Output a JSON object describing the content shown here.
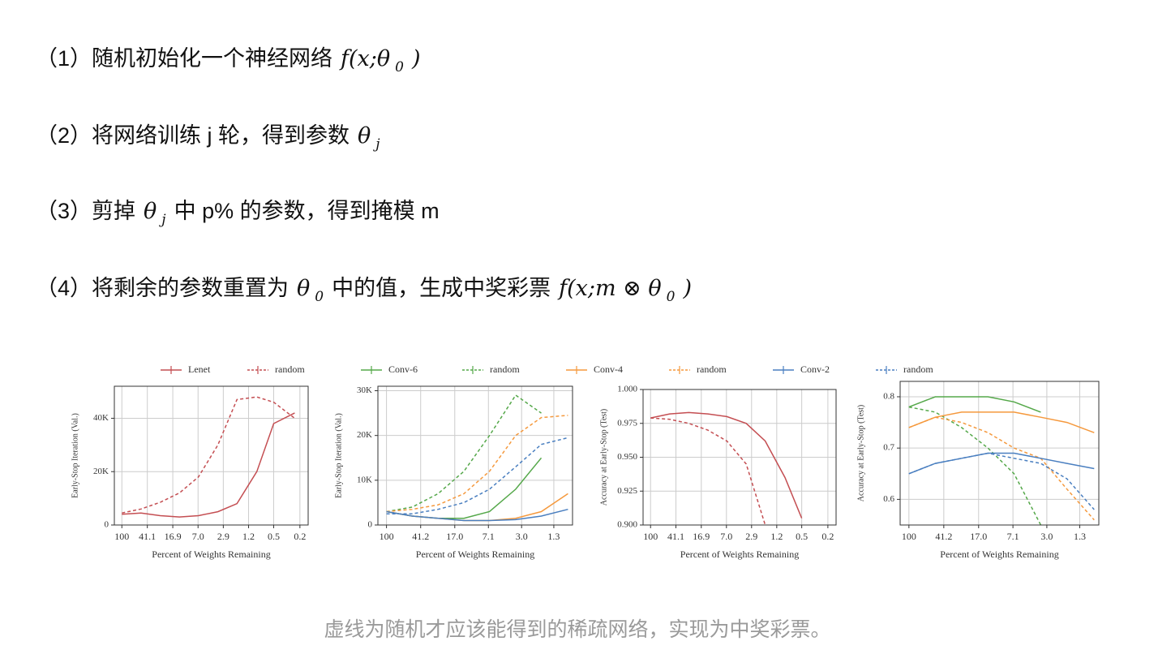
{
  "steps": [
    {
      "segments": [
        {
          "text": "（1）随机初始化一个神经网络"
        },
        {
          "math": "f(x;θ"
        },
        {
          "sub": "0"
        },
        {
          "math": ")"
        }
      ]
    },
    {
      "segments": [
        {
          "text": "（2）将网络训练 j 轮，得到参数"
        },
        {
          "math": "θ"
        },
        {
          "sub": "j"
        }
      ]
    },
    {
      "segments": [
        {
          "text": "（3）剪掉"
        },
        {
          "math": "θ"
        },
        {
          "sub": "j"
        },
        {
          "text": "中 p% 的参数，得到掩模 m"
        }
      ]
    },
    {
      "segments": [
        {
          "text": "（4）将剩余的参数重置为"
        },
        {
          "math": "θ"
        },
        {
          "sub": "0"
        },
        {
          "text": "中的值，生成中奖彩票"
        },
        {
          "math": "f(x;m ⊗ θ"
        },
        {
          "sub": "0"
        },
        {
          "math": ")"
        }
      ]
    }
  ],
  "figure": {
    "legend": [
      {
        "name": "Lenet",
        "color": "#c44e52",
        "dashed": false
      },
      {
        "name": "random",
        "color": "#c44e52",
        "dashed": true
      },
      {
        "name": "Conv-6",
        "color": "#55a84a",
        "dashed": false
      },
      {
        "name": "random",
        "color": "#55a84a",
        "dashed": true
      },
      {
        "name": "Conv-4",
        "color": "#f5993d",
        "dashed": false
      },
      {
        "name": "random",
        "color": "#f5993d",
        "dashed": true
      },
      {
        "name": "Conv-2",
        "color": "#4a7fc0",
        "dashed": false
      },
      {
        "name": "random",
        "color": "#4a7fc0",
        "dashed": true
      }
    ]
  },
  "chart_data": [
    {
      "type": "line",
      "xlabel": "Percent of Weights Remaining",
      "ylabel": "Early-Stop Iteration (Val.)",
      "xscale": "log",
      "grid": true,
      "x": [
        100,
        51.2,
        26.2,
        13.4,
        6.9,
        3.5,
        1.8,
        0.9,
        0.5,
        0.24
      ],
      "xlim": [
        130,
        0.15
      ],
      "xticks": [
        100,
        41.1,
        16.9,
        {
          "value": 7,
          "label": "7.0"
        },
        2.9,
        1.2,
        0.5,
        0.2
      ],
      "ylim": [
        0,
        52000
      ],
      "yticks": [
        0,
        {
          "value": 20000,
          "label": "20K"
        },
        {
          "value": 40000,
          "label": "40K"
        }
      ],
      "series": [
        {
          "color": "#c44e52",
          "dashed": false,
          "values": [
            4000,
            4500,
            3500,
            3000,
            3500,
            5000,
            8000,
            20000,
            38000,
            42000
          ]
        },
        {
          "color": "#c44e52",
          "dashed": true,
          "values": [
            4500,
            6000,
            8500,
            12000,
            18000,
            30000,
            47000,
            48000,
            46000,
            40000
          ]
        }
      ]
    },
    {
      "type": "line",
      "xlabel": "Percent of Weights Remaining",
      "ylabel": "Early-Stop Iteration (Val.)",
      "xscale": "log",
      "grid": true,
      "x": [
        100,
        51.2,
        26.2,
        13.4,
        6.9,
        3.5,
        1.8,
        0.9
      ],
      "xlim": [
        125,
        0.8
      ],
      "xticks": [
        100,
        41.2,
        {
          "value": 17,
          "label": "17.0"
        },
        7.1,
        {
          "value": 3,
          "label": "3.0"
        },
        1.3
      ],
      "ylim": [
        0,
        31000
      ],
      "yticks": [
        0,
        {
          "value": 10000,
          "label": "10K"
        },
        {
          "value": 20000,
          "label": "20K"
        },
        {
          "value": 30000,
          "label": "30K"
        }
      ],
      "series": [
        {
          "color": "#55a84a",
          "dashed": false,
          "values": [
            3000,
            2000,
            1500,
            1500,
            3000,
            8000,
            15000,
            null
          ]
        },
        {
          "color": "#55a84a",
          "dashed": true,
          "values": [
            3000,
            4000,
            7000,
            12000,
            20000,
            29000,
            25000,
            null
          ]
        },
        {
          "color": "#f5993d",
          "dashed": false,
          "values": [
            3000,
            2000,
            1500,
            1000,
            1000,
            1500,
            3000,
            7000
          ]
        },
        {
          "color": "#f5993d",
          "dashed": true,
          "values": [
            3000,
            3500,
            4500,
            7000,
            12000,
            20000,
            24000,
            24500
          ]
        },
        {
          "color": "#4a7fc0",
          "dashed": false,
          "values": [
            3000,
            2000,
            1500,
            1000,
            1000,
            1200,
            2000,
            3500
          ]
        },
        {
          "color": "#4a7fc0",
          "dashed": true,
          "values": [
            2500,
            2500,
            3500,
            5000,
            8000,
            13000,
            18000,
            19500
          ]
        }
      ]
    },
    {
      "type": "line",
      "xlabel": "Percent of Weights Remaining",
      "ylabel": "Accuracy at Early-Stop (Test)",
      "xscale": "log",
      "grid": true,
      "x": [
        100,
        51.2,
        26.2,
        13.4,
        6.9,
        3.5,
        1.8,
        0.9,
        0.5,
        0.24
      ],
      "xlim": [
        130,
        0.15
      ],
      "xticks": [
        100,
        41.1,
        16.9,
        {
          "value": 7,
          "label": "7.0"
        },
        2.9,
        1.2,
        0.5,
        0.2
      ],
      "ylim": [
        0.9,
        1
      ],
      "yticks": [
        {
          "value": 0.9,
          "label": "0.900"
        },
        0.925,
        {
          "value": 0.95,
          "label": "0.950"
        },
        0.975,
        {
          "value": 1,
          "label": "1.000"
        }
      ],
      "series": [
        {
          "color": "#c44e52",
          "dashed": false,
          "values": [
            0.979,
            0.982,
            0.983,
            0.982,
            0.98,
            0.975,
            0.962,
            0.935,
            0.905,
            null
          ]
        },
        {
          "color": "#c44e52",
          "dashed": true,
          "values": [
            0.979,
            0.978,
            0.975,
            0.97,
            0.962,
            0.945,
            0.9,
            null,
            null,
            null
          ]
        }
      ]
    },
    {
      "type": "line",
      "xlabel": "Percent of Weights Remaining",
      "ylabel": "Accuracy at Early-Stop (Test)",
      "xscale": "log",
      "grid": true,
      "x": [
        100,
        51.2,
        26.2,
        13.4,
        6.9,
        3.5,
        1.8,
        0.9
      ],
      "xlim": [
        125,
        0.8
      ],
      "xticks": [
        100,
        41.2,
        {
          "value": 17,
          "label": "17.0"
        },
        7.1,
        {
          "value": 3,
          "label": "3.0"
        },
        1.3
      ],
      "ylim": [
        0.55,
        0.83
      ],
      "yticks": [
        0.6,
        0.7,
        0.8
      ],
      "series": [
        {
          "color": "#55a84a",
          "dashed": false,
          "values": [
            0.78,
            0.8,
            0.8,
            0.8,
            0.79,
            0.77,
            null,
            null
          ]
        },
        {
          "color": "#55a84a",
          "dashed": true,
          "values": [
            0.78,
            0.77,
            0.74,
            0.7,
            0.65,
            0.55,
            null,
            null
          ]
        },
        {
          "color": "#f5993d",
          "dashed": false,
          "values": [
            0.74,
            0.76,
            0.77,
            0.77,
            0.77,
            0.76,
            0.75,
            0.73
          ]
        },
        {
          "color": "#f5993d",
          "dashed": true,
          "values": [
            0.74,
            0.76,
            0.75,
            0.73,
            0.7,
            0.68,
            0.62,
            0.56
          ]
        },
        {
          "color": "#4a7fc0",
          "dashed": false,
          "values": [
            0.65,
            0.67,
            0.68,
            0.69,
            0.69,
            0.68,
            0.67,
            0.66
          ]
        },
        {
          "color": "#4a7fc0",
          "dashed": true,
          "values": [
            0.65,
            0.67,
            0.68,
            0.69,
            0.68,
            0.67,
            0.64,
            0.58
          ]
        }
      ]
    }
  ],
  "caption": "虚线为随机才应该能得到的稀疏网络，实现为中奖彩票。"
}
